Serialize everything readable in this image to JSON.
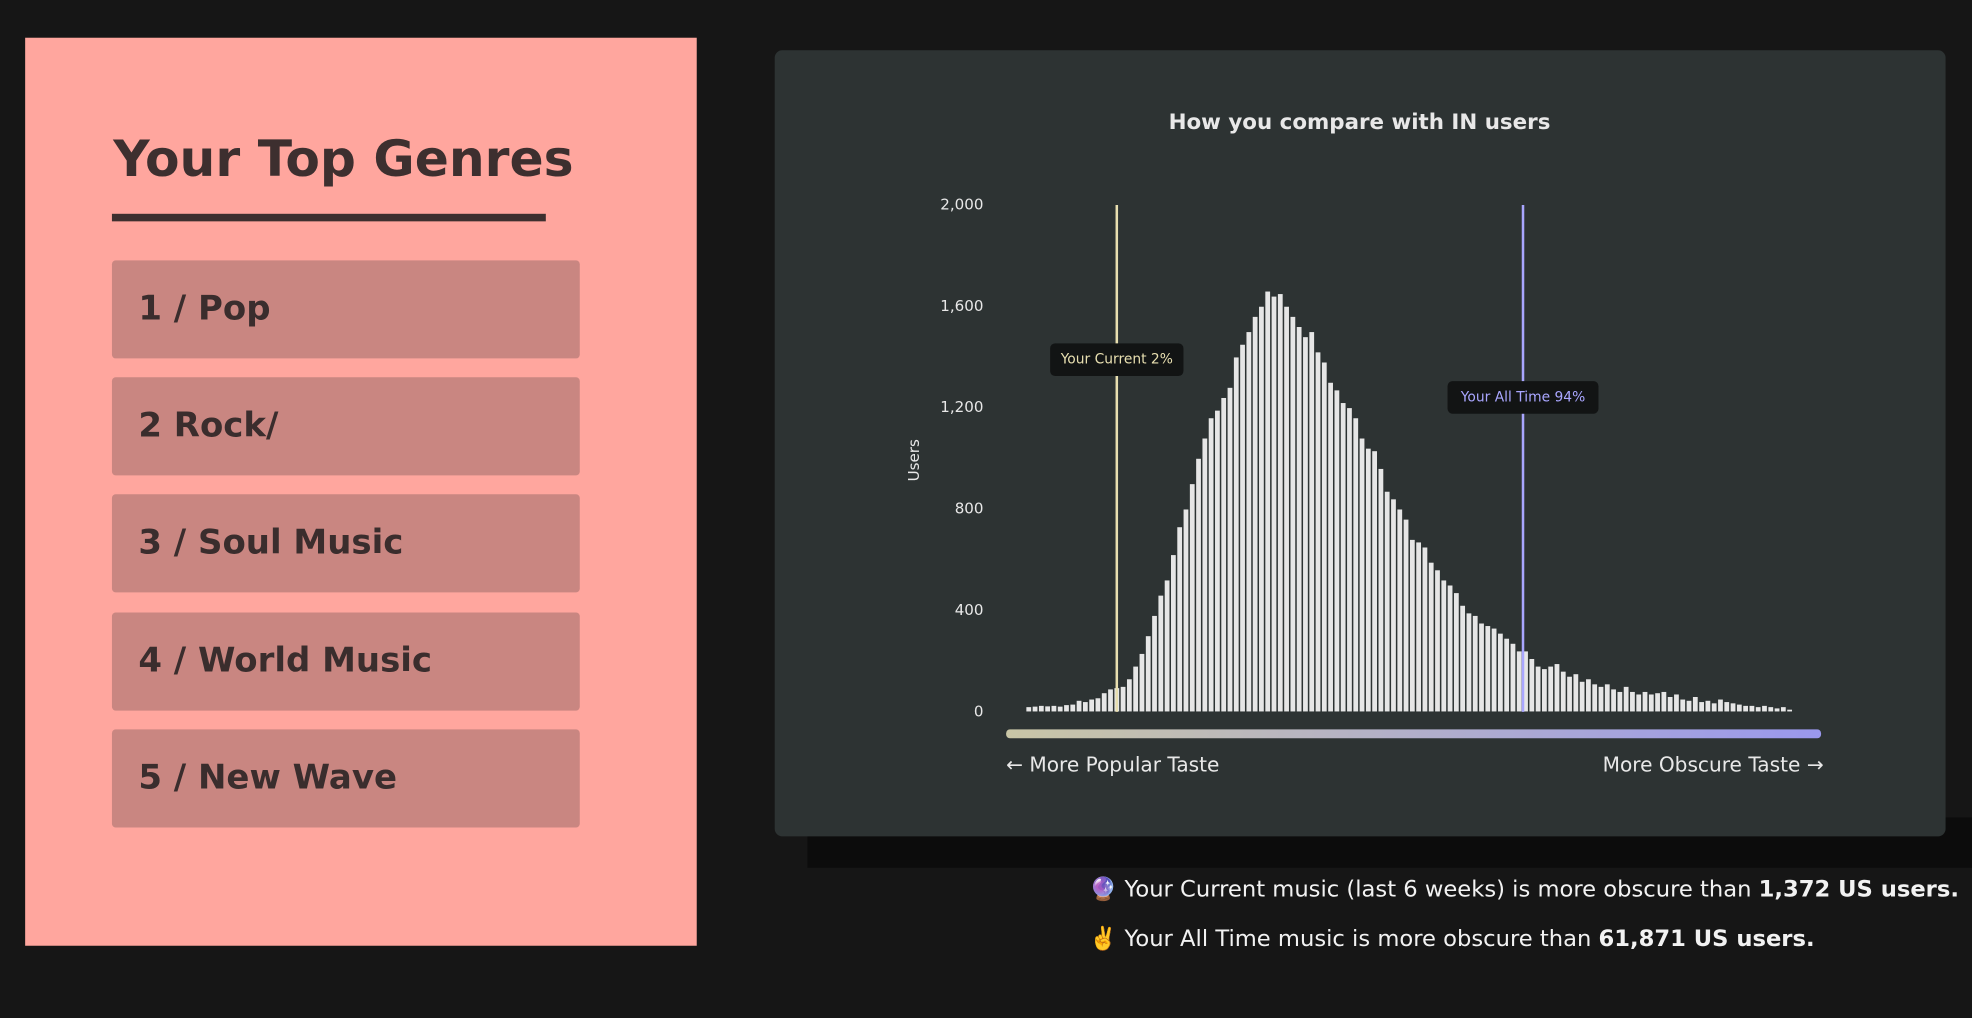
{
  "genres": {
    "title": "Your Top Genres",
    "items": [
      "1 / Pop",
      "2 Rock/",
      "3 / Soul Music",
      "4 / World Music",
      "5 / New Wave"
    ]
  },
  "chart_data": {
    "type": "bar",
    "title": "How you compare with IN users",
    "ylabel": "Users",
    "x_axis_labels": [
      "← More Popular Taste",
      "More Obscure Taste →"
    ],
    "color": "#e6e6e6",
    "ylim": [
      0,
      2000
    ],
    "yticks": [
      0,
      {
        "value": 400,
        "label": "400"
      },
      {
        "value": 800,
        "label": "800"
      },
      {
        "value": 1200,
        "label": "1,200"
      },
      {
        "value": 1600,
        "label": "1,600"
      },
      {
        "value": 2000,
        "label": "2,000"
      }
    ],
    "annotations": [
      {
        "text": "Your Current 2%",
        "color": "#e8dfb0"
      },
      {
        "text": "Your All Time 94%",
        "color": "#a9a6ff"
      }
    ],
    "values": [
      20,
      22,
      25,
      23,
      25,
      22,
      28,
      30,
      45,
      40,
      50,
      55,
      75,
      90,
      95,
      100,
      130,
      180,
      230,
      300,
      380,
      460,
      520,
      620,
      730,
      800,
      900,
      1000,
      1080,
      1160,
      1190,
      1240,
      1280,
      1400,
      1450,
      1500,
      1560,
      1600,
      1660,
      1640,
      1650,
      1600,
      1560,
      1520,
      1480,
      1500,
      1420,
      1380,
      1300,
      1270,
      1220,
      1200,
      1160,
      1080,
      1040,
      1030,
      960,
      870,
      840,
      800,
      760,
      680,
      670,
      650,
      590,
      560,
      520,
      500,
      470,
      420,
      390,
      380,
      350,
      340,
      330,
      310,
      290,
      270,
      240,
      240,
      210,
      180,
      170,
      180,
      190,
      160,
      140,
      150,
      120,
      130,
      110,
      100,
      110,
      90,
      80,
      100,
      80,
      70,
      80,
      70,
      75,
      80,
      60,
      70,
      50,
      45,
      60,
      40,
      45,
      35,
      50,
      40,
      35,
      30,
      25,
      25,
      20,
      25,
      20,
      15,
      20,
      10
    ]
  },
  "footer": [
    {
      "icon": "🔮",
      "text": "Your Current music (last 6 weeks) is more obscure than",
      "strong": "1,372 US users."
    },
    {
      "icon": "✌️",
      "text": "Your All Time music is more obscure than",
      "strong": "61,871 US users."
    }
  ]
}
